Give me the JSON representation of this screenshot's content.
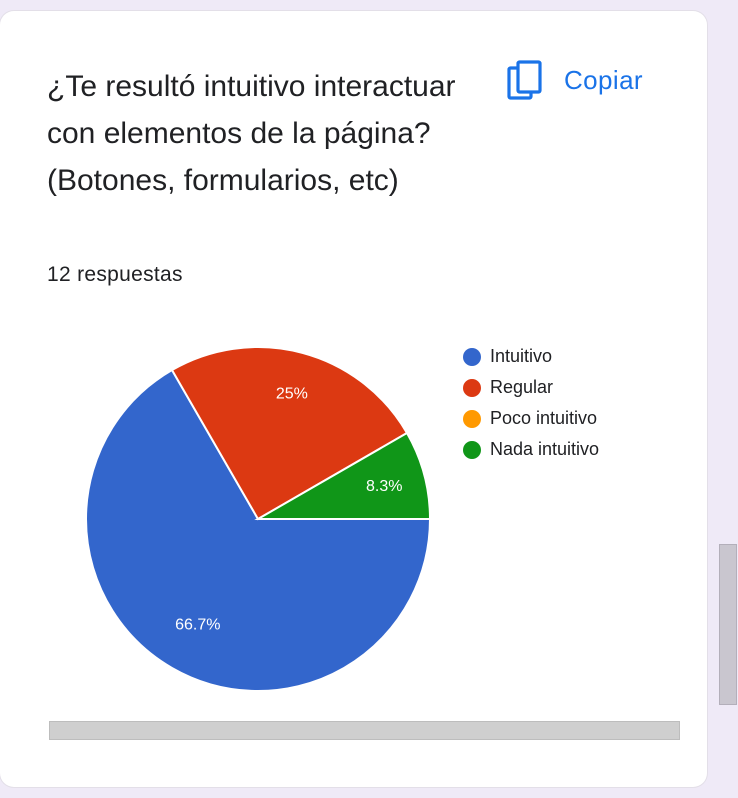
{
  "question": {
    "title": "¿Te resultó intuitivo interactuar con elementos de la página? (Botones, formularios, etc)",
    "response_count": "12 respuestas"
  },
  "toolbar": {
    "copy_label": "Copiar",
    "copy_icon": "copy-icon"
  },
  "colors": {
    "accent": "#1a73e8",
    "intuitivo": "#3366cc",
    "regular": "#dc3912",
    "poco_intuitivo": "#ff9900",
    "nada_intuitivo": "#109618"
  },
  "chart_data": {
    "type": "pie",
    "title": "¿Te resultó intuitivo interactuar con elementos de la página? (Botones, formularios, etc)",
    "categories": [
      "Intuitivo",
      "Regular",
      "Poco intuitivo",
      "Nada intuitivo"
    ],
    "values": [
      8,
      3,
      0,
      1
    ],
    "percent_labels": [
      "66.7%",
      "25%",
      "",
      "8.3%"
    ],
    "colors": [
      "#3366cc",
      "#dc3912",
      "#ff9900",
      "#109618"
    ],
    "legend_position": "right"
  }
}
